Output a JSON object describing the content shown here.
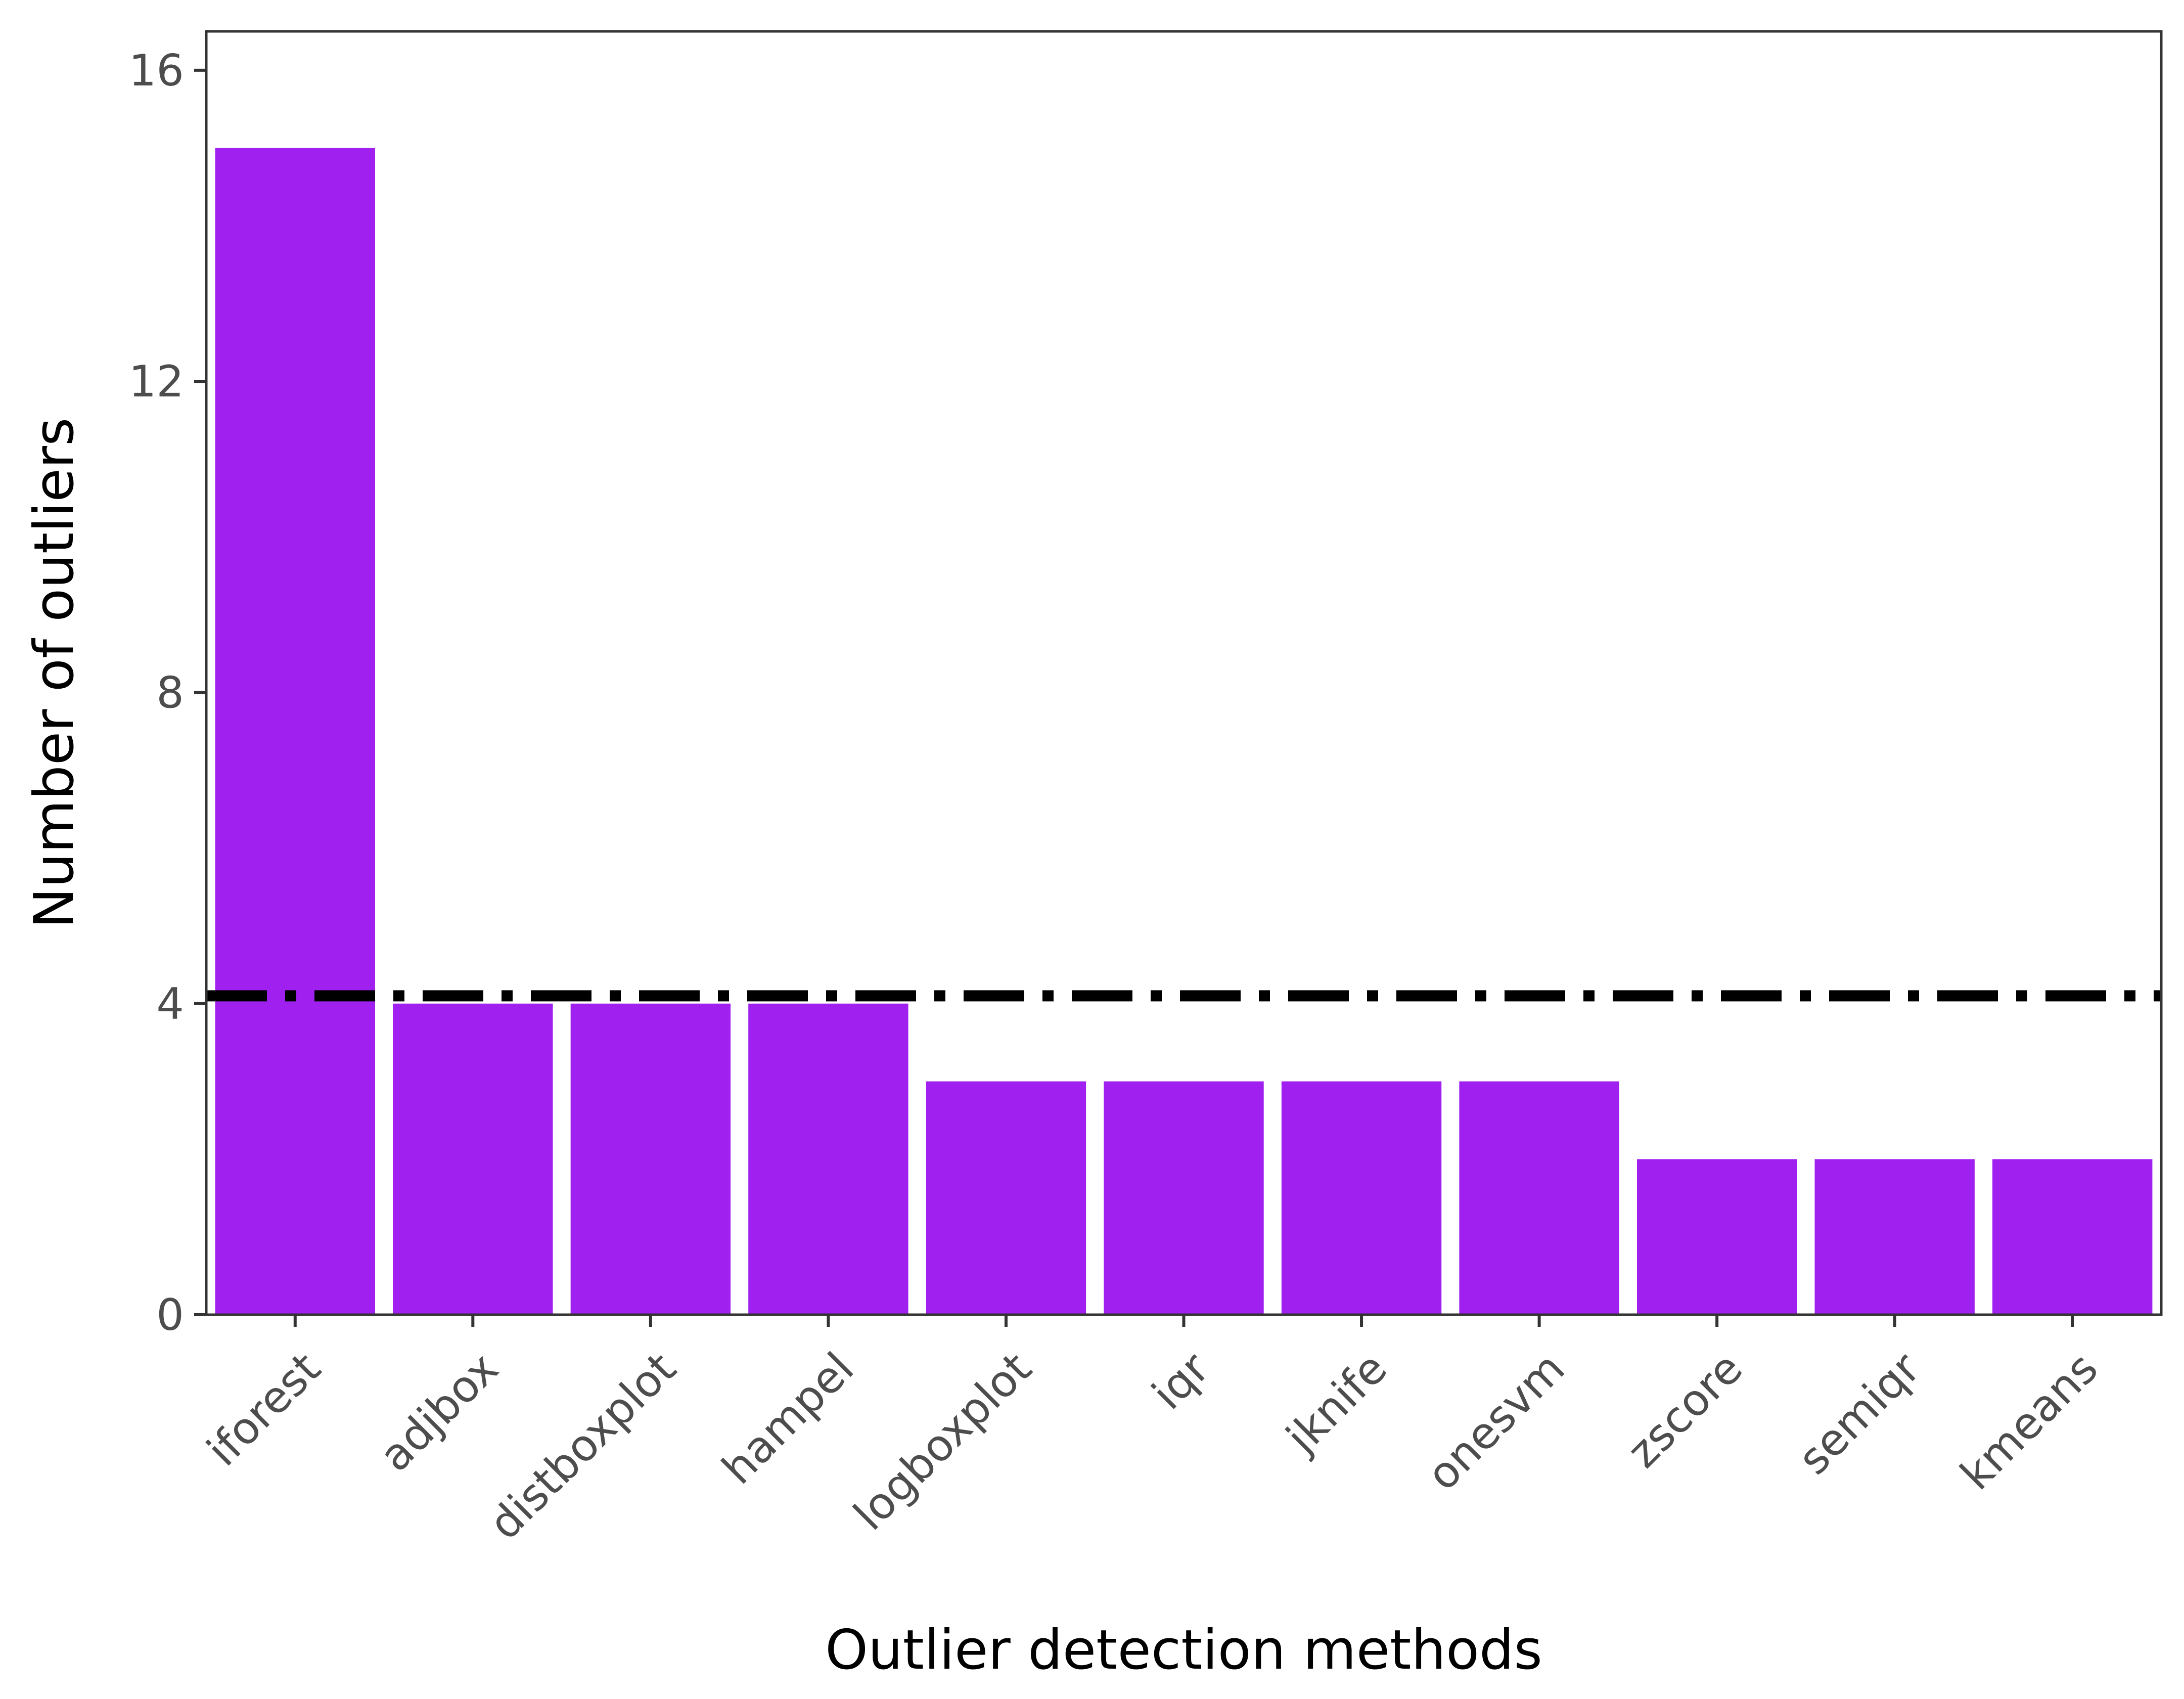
{
  "chart_data": {
    "type": "bar",
    "xlabel": "Outlier detection methods",
    "ylabel": "Number of outliers",
    "categories": [
      "iforest",
      "adjbox",
      "distboxplot",
      "hampel",
      "logboxplot",
      "iqr",
      "jknife",
      "onesvm",
      "zscore",
      "semiqr",
      "kmeans"
    ],
    "values": [
      15,
      4,
      4,
      4,
      3,
      3,
      3,
      3,
      2,
      2,
      2
    ],
    "ylim": [
      0,
      16.5
    ],
    "yticks": [
      0,
      4,
      8,
      12,
      16
    ],
    "reference_line": {
      "value": 4.1,
      "style": "dash-dot",
      "color": "#000000"
    },
    "bar_color": "#A020F0",
    "grid": false,
    "legend": "none"
  }
}
